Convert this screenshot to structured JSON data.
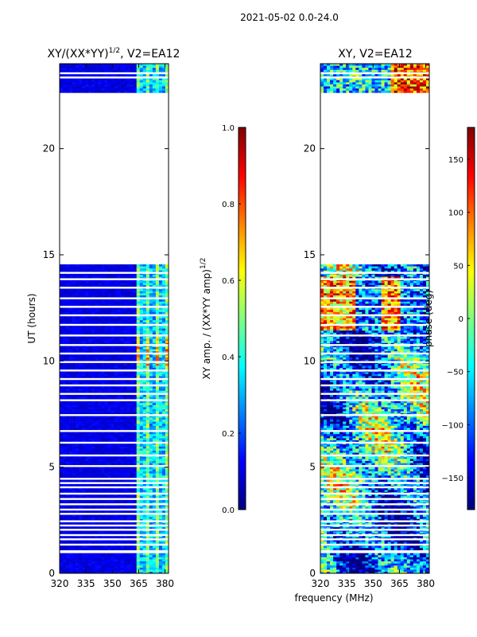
{
  "figure_title": "2021-05-02 0.0-24.0",
  "shared_xlabel": "frequency (MHz)",
  "colors": {
    "jet": [
      "#00007f",
      "#0000ff",
      "#007fff",
      "#00ffff",
      "#7fff7f",
      "#ffff00",
      "#ff7f00",
      "#ff0000",
      "#7f0000"
    ],
    "background": "#ffffff",
    "axis": "#000000"
  },
  "chart_data": [
    {
      "type": "heatmap",
      "title_main": "XY/(XX*YY)",
      "title_sup": "1/2",
      "title_tail": ", V2=EA12",
      "xlabel": "",
      "ylabel": "UT (hours)",
      "xlim": [
        320,
        382
      ],
      "ylim": [
        0,
        24
      ],
      "xticks": [
        320,
        335,
        350,
        365,
        380
      ],
      "yticks": [
        0,
        5,
        10,
        15,
        20
      ],
      "data_blocks_hours": [
        [
          0,
          0.95
        ],
        [
          1.15,
          14.55
        ],
        [
          22.7,
          24
        ]
      ],
      "flagged_rows_hours": [
        1.35,
        1.6,
        1.8,
        2.05,
        2.25,
        2.45,
        2.8,
        3.0,
        3.25,
        3.5,
        3.75,
        4.05,
        4.25,
        4.45,
        5.05,
        5.55,
        6.15,
        6.7,
        7.45,
        8.15,
        8.45,
        8.85,
        9.15,
        9.55,
        9.95,
        10.35,
        10.75,
        11.2,
        11.7,
        12.15,
        12.55,
        12.95,
        13.45,
        13.85,
        14.15,
        23.35,
        23.55
      ],
      "bright_channel_band_mhz": [
        363,
        382
      ],
      "colorbar": {
        "label_main": "XY amp. / (XX*YY amp)",
        "label_sup": "1/2",
        "range": [
          0,
          1
        ],
        "ticks": [
          "0.0",
          "0.2",
          "0.4",
          "0.6",
          "0.8",
          "1.0"
        ]
      }
    },
    {
      "type": "heatmap",
      "title_main": "XY, V2=EA12",
      "xlabel": "",
      "ylabel": "",
      "xlim": [
        320,
        382
      ],
      "ylim": [
        0,
        24
      ],
      "xticks": [
        320,
        335,
        350,
        365,
        380
      ],
      "yticks": [
        0,
        5,
        10,
        15,
        20
      ],
      "data_blocks_hours": [
        [
          0,
          0.95
        ],
        [
          1.15,
          14.55
        ],
        [
          22.7,
          24
        ]
      ],
      "flagged_rows_hours": [
        1.35,
        1.6,
        1.8,
        2.05,
        2.25,
        2.45,
        2.8,
        3.0,
        3.25,
        3.5,
        3.75,
        4.05,
        4.25,
        4.45,
        5.05,
        5.55,
        6.15,
        6.7,
        7.45,
        8.15,
        8.45,
        8.85,
        9.15,
        9.55,
        9.95,
        10.35,
        10.75,
        11.2,
        11.7,
        12.15,
        12.55,
        12.95,
        13.45,
        13.85,
        14.15,
        23.35,
        23.55
      ],
      "colorbar": {
        "label_main": "phase (deg)",
        "range": [
          -180,
          180
        ],
        "ticks": [
          "150",
          "100",
          "50",
          "0",
          "−50",
          "−100",
          "−150"
        ]
      }
    }
  ]
}
